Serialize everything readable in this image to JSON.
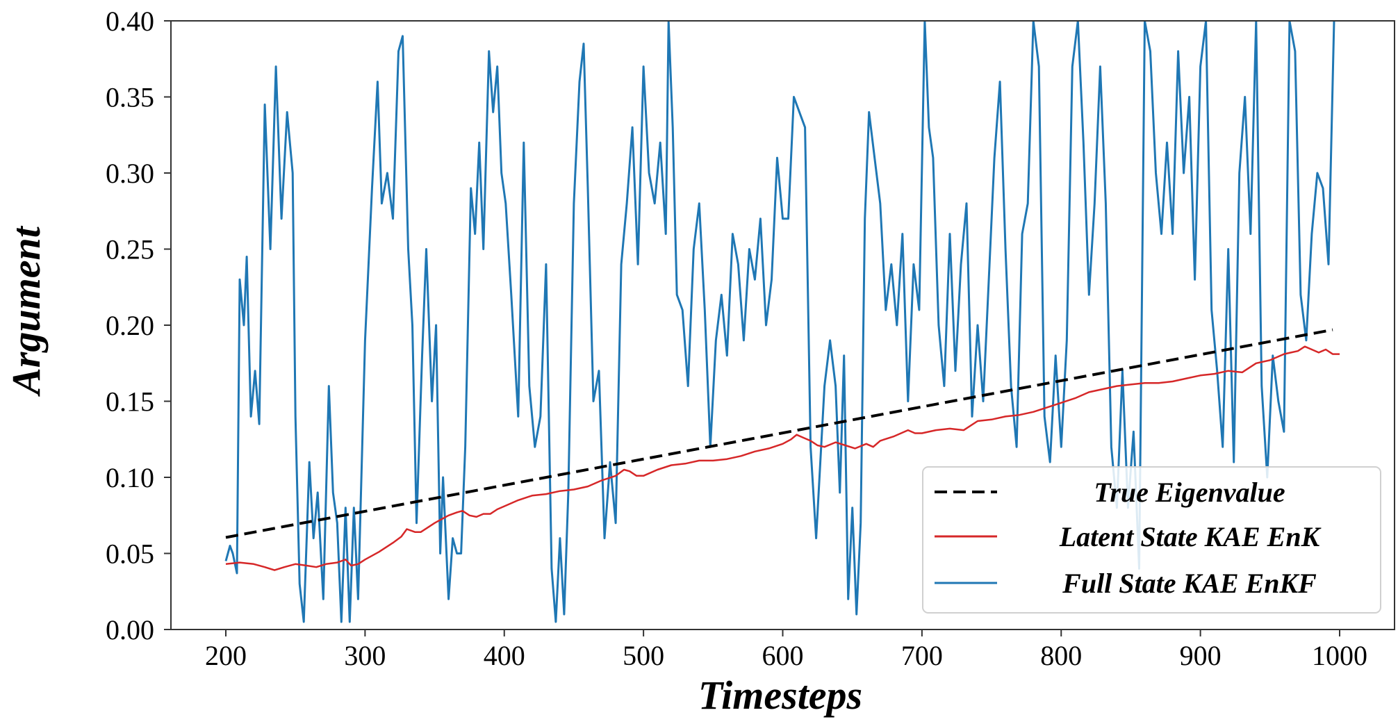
{
  "chart_data": {
    "type": "line",
    "title": "",
    "xlabel": "Timesteps",
    "ylabel": "Argument",
    "xlim": [
      160,
      1052
    ],
    "ylim": [
      0.0,
      0.4
    ],
    "grid": false,
    "xticks": [
      200,
      300,
      400,
      500,
      600,
      700,
      800,
      900,
      1000
    ],
    "xtick_labels": [
      "200",
      "300",
      "400",
      "500",
      "600",
      "700",
      "800",
      "900",
      "1000"
    ],
    "yticks": [
      0.0,
      0.05,
      0.1,
      0.15,
      0.2,
      0.25,
      0.3,
      0.35,
      0.4
    ],
    "ytick_labels": [
      "0.00",
      "0.05",
      "0.10",
      "0.15",
      "0.20",
      "0.25",
      "0.30",
      "0.35",
      "0.40"
    ],
    "legend": {
      "placement": "lower-right",
      "entries": [
        "True Eigenvalue",
        "Latent State KAE EnK",
        "Full State KAE EnKF"
      ]
    },
    "series": [
      {
        "name": "True Eigenvalue",
        "color": "#000000",
        "style": "dashed",
        "x": [
          200,
          995
        ],
        "y": [
          0.0605,
          0.197
        ]
      },
      {
        "name": "Latent State KAE EnK",
        "color": "#d62728",
        "style": "solid",
        "x": [
          200,
          210,
          220,
          228,
          235,
          242,
          250,
          258,
          265,
          272,
          280,
          286,
          290,
          295,
          300,
          310,
          320,
          326,
          330,
          336,
          340,
          345,
          350,
          356,
          360,
          366,
          370,
          375,
          380,
          385,
          390,
          395,
          400,
          410,
          420,
          430,
          440,
          450,
          460,
          470,
          480,
          486,
          490,
          495,
          500,
          510,
          520,
          530,
          540,
          550,
          560,
          570,
          580,
          590,
          600,
          606,
          610,
          615,
          620,
          625,
          630,
          638,
          645,
          652,
          660,
          665,
          670,
          680,
          690,
          695,
          700,
          710,
          720,
          730,
          740,
          750,
          760,
          770,
          780,
          790,
          800,
          810,
          820,
          830,
          840,
          850,
          860,
          870,
          880,
          890,
          900,
          910,
          920,
          930,
          940,
          950,
          960,
          965,
          970,
          975,
          980,
          985,
          990,
          995,
          1000
        ],
        "y": [
          0.043,
          0.044,
          0.043,
          0.041,
          0.039,
          0.041,
          0.043,
          0.042,
          0.041,
          0.043,
          0.044,
          0.046,
          0.042,
          0.043,
          0.046,
          0.051,
          0.057,
          0.061,
          0.066,
          0.064,
          0.064,
          0.067,
          0.07,
          0.073,
          0.075,
          0.077,
          0.078,
          0.075,
          0.074,
          0.076,
          0.076,
          0.079,
          0.081,
          0.085,
          0.088,
          0.089,
          0.091,
          0.092,
          0.094,
          0.098,
          0.101,
          0.105,
          0.104,
          0.101,
          0.101,
          0.105,
          0.108,
          0.109,
          0.111,
          0.111,
          0.112,
          0.114,
          0.117,
          0.119,
          0.122,
          0.125,
          0.128,
          0.126,
          0.124,
          0.121,
          0.12,
          0.123,
          0.121,
          0.119,
          0.122,
          0.12,
          0.124,
          0.127,
          0.131,
          0.129,
          0.129,
          0.131,
          0.132,
          0.131,
          0.137,
          0.138,
          0.14,
          0.141,
          0.143,
          0.146,
          0.149,
          0.152,
          0.156,
          0.158,
          0.16,
          0.161,
          0.162,
          0.162,
          0.163,
          0.165,
          0.167,
          0.168,
          0.17,
          0.169,
          0.175,
          0.177,
          0.181,
          0.182,
          0.183,
          0.186,
          0.184,
          0.182,
          0.184,
          0.181,
          0.181
        ]
      },
      {
        "name": "Full State KAE EnKF",
        "color": "#1f77b4",
        "style": "solid",
        "x": [
          200,
          203,
          205,
          208,
          210,
          213,
          215,
          218,
          221,
          224,
          228,
          232,
          236,
          240,
          244,
          248,
          250,
          253,
          256,
          260,
          263,
          266,
          270,
          274,
          277,
          280,
          283,
          286,
          289,
          292,
          295,
          300,
          305,
          309,
          312,
          316,
          320,
          324,
          327,
          331,
          334,
          337,
          341,
          344,
          348,
          351,
          354,
          356,
          360,
          363,
          366,
          369,
          372,
          376,
          379,
          382,
          385,
          389,
          392,
          395,
          398,
          401,
          405,
          410,
          414,
          418,
          422,
          426,
          430,
          434,
          437,
          440,
          443,
          446,
          450,
          454,
          457,
          460,
          464,
          468,
          472,
          476,
          480,
          484,
          488,
          492,
          496,
          500,
          504,
          508,
          512,
          516,
          518,
          521,
          524,
          528,
          532,
          536,
          540,
          544,
          548,
          552,
          556,
          560,
          564,
          568,
          572,
          576,
          580,
          584,
          588,
          592,
          596,
          600,
          604,
          608,
          612,
          616,
          620,
          624,
          627,
          630,
          634,
          638,
          641,
          644,
          647,
          650,
          653,
          656,
          659,
          662,
          666,
          670,
          674,
          678,
          682,
          686,
          690,
          694,
          698,
          702,
          705,
          708,
          712,
          716,
          720,
          724,
          728,
          732,
          736,
          740,
          744,
          748,
          752,
          756,
          760,
          764,
          768,
          772,
          776,
          780,
          784,
          788,
          792,
          796,
          800,
          804,
          808,
          812,
          816,
          820,
          824,
          828,
          832,
          836,
          840,
          844,
          848,
          852,
          856,
          860,
          864,
          868,
          872,
          876,
          880,
          884,
          888,
          892,
          896,
          900,
          904,
          908,
          912,
          916,
          920,
          924,
          928,
          932,
          936,
          940,
          944,
          948,
          952,
          956,
          960,
          964,
          968,
          972,
          976,
          980,
          984,
          988,
          992,
          996
        ],
        "y": [
          0.045,
          0.055,
          0.05,
          0.037,
          0.23,
          0.2,
          0.245,
          0.14,
          0.17,
          0.135,
          0.345,
          0.25,
          0.37,
          0.27,
          0.34,
          0.3,
          0.14,
          0.03,
          0.005,
          0.11,
          0.06,
          0.09,
          0.02,
          0.16,
          0.09,
          0.07,
          0.005,
          0.08,
          0.005,
          0.08,
          0.02,
          0.19,
          0.29,
          0.36,
          0.28,
          0.3,
          0.27,
          0.38,
          0.39,
          0.25,
          0.2,
          0.07,
          0.18,
          0.25,
          0.15,
          0.2,
          0.05,
          0.1,
          0.02,
          0.06,
          0.05,
          0.05,
          0.12,
          0.29,
          0.26,
          0.32,
          0.25,
          0.38,
          0.34,
          0.37,
          0.3,
          0.28,
          0.22,
          0.14,
          0.32,
          0.16,
          0.12,
          0.14,
          0.24,
          0.04,
          0.005,
          0.06,
          0.01,
          0.09,
          0.28,
          0.36,
          0.385,
          0.29,
          0.15,
          0.17,
          0.06,
          0.11,
          0.07,
          0.24,
          0.28,
          0.33,
          0.24,
          0.37,
          0.3,
          0.28,
          0.32,
          0.26,
          0.4,
          0.33,
          0.22,
          0.21,
          0.16,
          0.25,
          0.28,
          0.21,
          0.12,
          0.19,
          0.22,
          0.18,
          0.26,
          0.24,
          0.19,
          0.25,
          0.23,
          0.27,
          0.2,
          0.23,
          0.31,
          0.27,
          0.27,
          0.35,
          0.34,
          0.33,
          0.12,
          0.06,
          0.11,
          0.16,
          0.19,
          0.16,
          0.09,
          0.18,
          0.02,
          0.08,
          0.01,
          0.07,
          0.27,
          0.34,
          0.31,
          0.28,
          0.21,
          0.24,
          0.2,
          0.26,
          0.15,
          0.24,
          0.21,
          0.4,
          0.33,
          0.31,
          0.2,
          0.16,
          0.26,
          0.17,
          0.24,
          0.28,
          0.14,
          0.2,
          0.15,
          0.23,
          0.31,
          0.36,
          0.25,
          0.16,
          0.12,
          0.26,
          0.28,
          0.4,
          0.37,
          0.14,
          0.11,
          0.18,
          0.12,
          0.19,
          0.37,
          0.4,
          0.32,
          0.22,
          0.28,
          0.37,
          0.28,
          0.12,
          0.08,
          0.17,
          0.08,
          0.13,
          0.04,
          0.4,
          0.38,
          0.3,
          0.26,
          0.32,
          0.26,
          0.38,
          0.3,
          0.35,
          0.23,
          0.37,
          0.4,
          0.21,
          0.17,
          0.12,
          0.25,
          0.11,
          0.3,
          0.35,
          0.26,
          0.4,
          0.16,
          0.1,
          0.18,
          0.15,
          0.13,
          0.4,
          0.38,
          0.22,
          0.19,
          0.26,
          0.3,
          0.29,
          0.24,
          0.4
        ]
      }
    ]
  }
}
